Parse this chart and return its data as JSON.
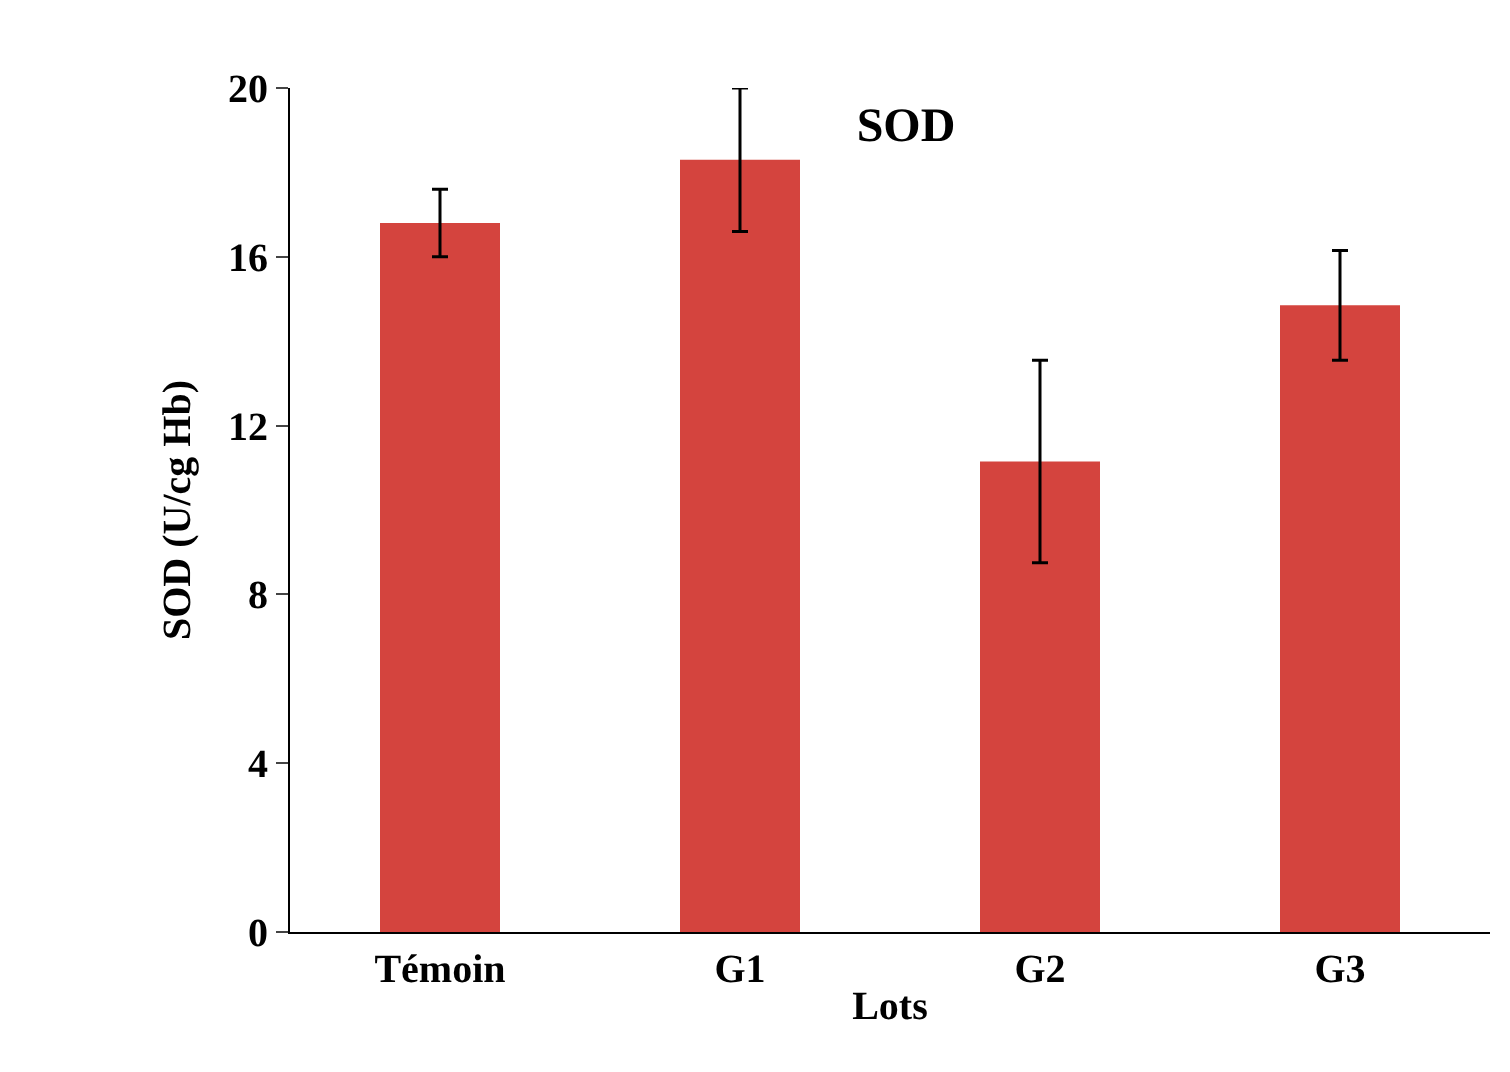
{
  "chart_data": {
    "type": "bar",
    "title": "SOD",
    "xlabel": "Lots",
    "ylabel": "SOD (U/cg Hb)",
    "categories": [
      "Témoin",
      "G1",
      "G2",
      "G3"
    ],
    "values": [
      16.8,
      18.3,
      11.15,
      14.85
    ],
    "errors": [
      0.8,
      1.7,
      2.4,
      1.3
    ],
    "color": "#d4443e",
    "ylim": [
      0,
      20
    ],
    "yticks": [
      0,
      4,
      8,
      12,
      16,
      20
    ],
    "grid": false,
    "legend": false
  }
}
